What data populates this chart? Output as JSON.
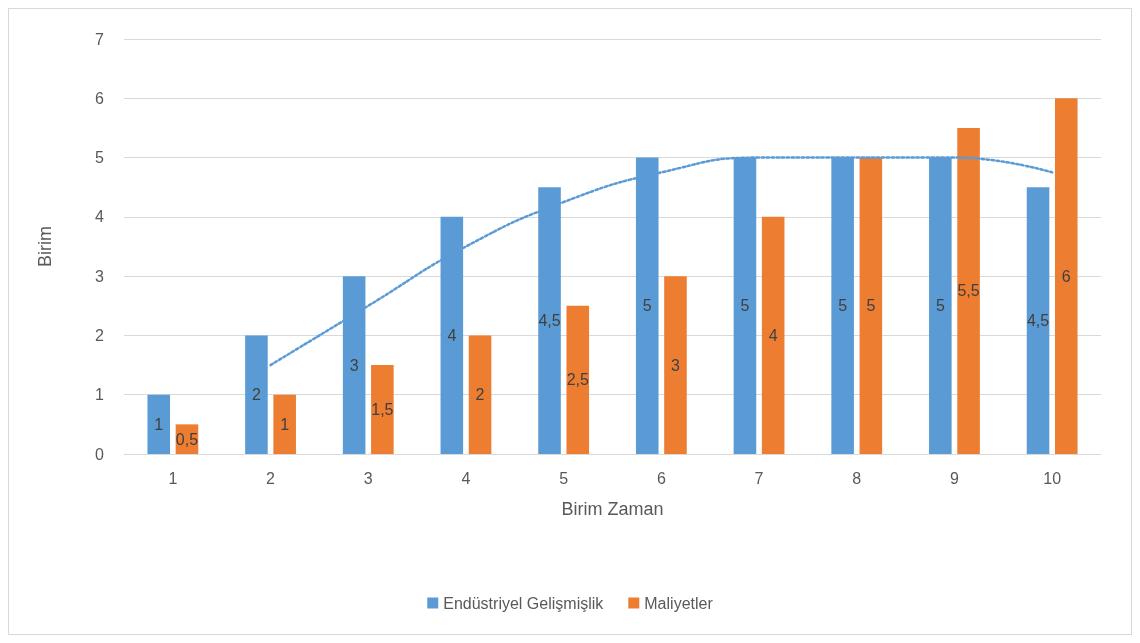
{
  "chart_data": {
    "type": "bar",
    "xlabel": "Birim Zaman",
    "ylabel": "Birim",
    "categories": [
      "1",
      "2",
      "3",
      "4",
      "5",
      "6",
      "7",
      "8",
      "9",
      "10"
    ],
    "series": [
      {
        "name": "Endüstriyel Gelişmişlik",
        "color": "#5b9bd5",
        "values": [
          1,
          2,
          3,
          4,
          4.5,
          5,
          5,
          5,
          5,
          4.5
        ],
        "value_labels": [
          "1",
          "2",
          "3",
          "4",
          "4,5",
          "5",
          "5",
          "5",
          "5",
          "4,5"
        ]
      },
      {
        "name": "Maliyetler",
        "color": "#ed7d31",
        "values": [
          0.5,
          1,
          1.5,
          2,
          2.5,
          3,
          4,
          5,
          5.5,
          6
        ],
        "value_labels": [
          "0,5",
          "1",
          "1,5",
          "2",
          "2,5",
          "3",
          "4",
          "5",
          "5,5",
          "6"
        ]
      },
      {
        "type": "line",
        "color": "#5b9bd5",
        "line_style": "dotted",
        "marker": "none",
        "values": [
          null,
          1.5,
          2.5,
          3.5,
          4.25,
          4.75,
          5,
          5,
          5,
          4.75
        ]
      }
    ],
    "ylim": [
      0,
      7
    ],
    "yticks": [
      0,
      1,
      2,
      3,
      4,
      5,
      6,
      7
    ],
    "grid": "y",
    "legend": "bottom"
  }
}
